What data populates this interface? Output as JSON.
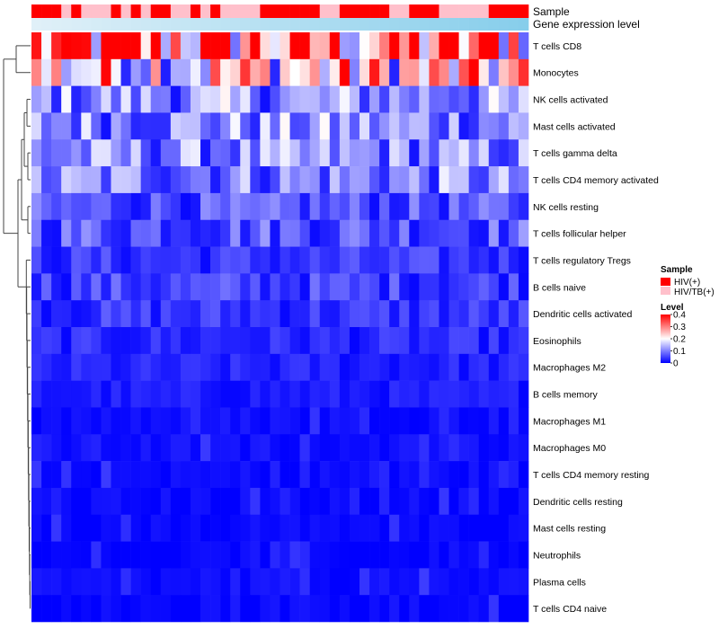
{
  "chart_data": {
    "type": "heatmap",
    "annotations": {
      "sample_title": "Sample",
      "gene_title": "Gene expression level",
      "sample_pattern": [
        "HIV(+)",
        "HIV(+)",
        "HIV(+)",
        "HIV/TB(+)",
        "HIV(+)",
        "HIV/TB(+)",
        "HIV/TB(+)",
        "HIV/TB(+)",
        "HIV(+)",
        "HIV/TB(+)",
        "HIV(+)",
        "HIV/TB(+)",
        "HIV(+)",
        "HIV(+)",
        "HIV/TB(+)",
        "HIV/TB(+)",
        "HIV(+)",
        "HIV/TB(+)",
        "HIV(+)",
        "HIV/TB(+)",
        "HIV/TB(+)",
        "HIV/TB(+)",
        "HIV/TB(+)",
        "HIV(+)",
        "HIV(+)",
        "HIV(+)",
        "HIV(+)",
        "HIV(+)",
        "HIV(+)",
        "HIV/TB(+)",
        "HIV/TB(+)",
        "HIV(+)",
        "HIV(+)",
        "HIV(+)",
        "HIV(+)",
        "HIV(+)",
        "HIV/TB(+)",
        "HIV/TB(+)",
        "HIV(+)",
        "HIV(+)",
        "HIV(+)",
        "HIV/TB(+)",
        "HIV/TB(+)",
        "HIV/TB(+)",
        "HIV/TB(+)",
        "HIV/TB(+)",
        "HIV(+)",
        "HIV(+)",
        "HIV(+)",
        "HIV(+)"
      ]
    },
    "rows": [
      "T cells CD8",
      "Monocytes",
      "NK cells activated",
      "Mast cells activated",
      "T cells gamma delta",
      "T cells CD4 memory activated",
      "NK cells resting",
      "T cells follicular helper",
      "T cells regulatory  Tregs",
      "B cells naive",
      "Dendritic cells activated",
      "Eosinophils",
      "Macrophages M2",
      "B cells memory",
      "Macrophages M1",
      "Macrophages M0",
      "T cells CD4 memory resting",
      "Dendritic cells resting",
      "Mast cells resting",
      "Neutrophils",
      "Plasma cells",
      "T cells CD4 naive"
    ],
    "row_means": [
      0.3,
      0.22,
      0.11,
      0.11,
      0.1,
      0.1,
      0.06,
      0.07,
      0.04,
      0.05,
      0.04,
      0.03,
      0.025,
      0.02,
      0.012,
      0.012,
      0.008,
      0.006,
      0.004,
      0.002,
      0.008,
      0.004
    ],
    "n_samples": 50,
    "value_range": [
      0,
      0.4
    ],
    "colorbar_ticks": [
      "0.4",
      "0.3",
      "0.2",
      "0.1",
      "0"
    ],
    "legend": {
      "sample_title": "Sample",
      "sample_items": [
        {
          "label": "HIV(+)",
          "color": "#ff0000"
        },
        {
          "label": "HIV/TB(+)",
          "color": "#ffc0cb"
        }
      ],
      "level_title": "Level"
    },
    "colors": {
      "low": "#0000ff",
      "mid": "#ffffff",
      "high": "#ff0000",
      "gene_bar": "#87ceeb"
    }
  }
}
